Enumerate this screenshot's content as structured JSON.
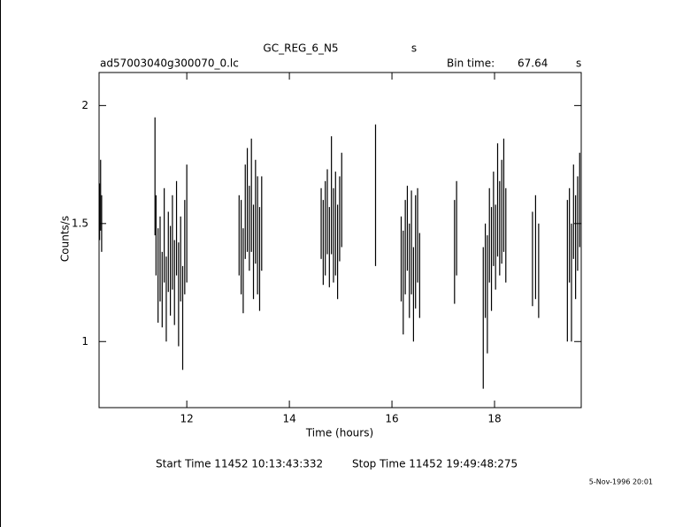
{
  "chart_data": {
    "type": "errorbar",
    "title": "GC_REG_6_N5",
    "title_unit": "s",
    "file_label": "ad57003040g300070_0.lc",
    "bin_label": "Bin time:",
    "bin_time": "67.64",
    "bin_unit": "s",
    "x_label": "Time (hours)",
    "y_label": "Counts/s",
    "start_time": "Start Time 11452 10:13:43:332",
    "stop_time": "Stop Time 11452 19:49:48:275",
    "date_stamp": "5-Nov-1996 20:01",
    "color": "#000000",
    "xlim": [
      10.29,
      19.69
    ],
    "xticks": [
      12,
      14,
      16,
      18
    ],
    "ylim": [
      0.72,
      2.14
    ],
    "yticks": [
      1,
      1.5,
      2
    ],
    "x": [
      10.3,
      10.32,
      10.34,
      11.38,
      11.4,
      11.44,
      11.48,
      11.52,
      11.56,
      11.6,
      11.64,
      11.68,
      11.72,
      11.76,
      11.8,
      11.84,
      11.88,
      11.92,
      11.96,
      12.0,
      13.02,
      13.06,
      13.1,
      13.14,
      13.18,
      13.22,
      13.26,
      13.3,
      13.34,
      13.38,
      13.42,
      13.46,
      14.62,
      14.66,
      14.7,
      14.74,
      14.78,
      14.82,
      14.86,
      14.9,
      14.94,
      14.98,
      15.02,
      15.68,
      16.18,
      16.22,
      16.26,
      16.3,
      16.34,
      16.38,
      16.42,
      16.46,
      16.5,
      16.54,
      17.22,
      17.26,
      17.78,
      17.82,
      17.86,
      17.9,
      17.94,
      17.98,
      18.02,
      18.06,
      18.1,
      18.14,
      18.18,
      18.22,
      18.74,
      18.8,
      18.86,
      19.42,
      19.46,
      19.5,
      19.54,
      19.58,
      19.62,
      19.66
    ],
    "values": [
      1.55,
      1.62,
      1.5,
      1.7,
      1.45,
      1.28,
      1.35,
      1.22,
      1.45,
      1.18,
      1.38,
      1.3,
      1.42,
      1.25,
      1.48,
      1.2,
      1.35,
      1.1,
      1.4,
      1.5,
      1.45,
      1.4,
      1.3,
      1.55,
      1.6,
      1.48,
      1.62,
      1.38,
      1.55,
      1.45,
      1.35,
      1.5,
      1.5,
      1.42,
      1.48,
      1.55,
      1.4,
      1.62,
      1.45,
      1.5,
      1.38,
      1.52,
      1.6,
      1.62,
      1.35,
      1.25,
      1.4,
      1.48,
      1.3,
      1.42,
      1.2,
      1.38,
      1.45,
      1.28,
      1.38,
      1.48,
      1.1,
      1.3,
      1.2,
      1.45,
      1.35,
      1.52,
      1.4,
      1.6,
      1.48,
      1.55,
      1.62,
      1.45,
      1.35,
      1.4,
      1.3,
      1.3,
      1.45,
      1.25,
      1.55,
      1.4,
      1.5,
      1.6
    ],
    "errors": [
      0.12,
      0.15,
      0.12,
      0.25,
      0.17,
      0.2,
      0.18,
      0.16,
      0.2,
      0.18,
      0.17,
      0.19,
      0.2,
      0.18,
      0.2,
      0.22,
      0.18,
      0.22,
      0.2,
      0.25,
      0.17,
      0.2,
      0.18,
      0.2,
      0.22,
      0.18,
      0.24,
      0.2,
      0.22,
      0.25,
      0.22,
      0.2,
      0.15,
      0.18,
      0.2,
      0.18,
      0.17,
      0.25,
      0.2,
      0.22,
      0.2,
      0.18,
      0.2,
      0.3,
      0.18,
      0.22,
      0.2,
      0.18,
      0.2,
      0.22,
      0.2,
      0.24,
      0.2,
      0.18,
      0.22,
      0.2,
      0.3,
      0.2,
      0.25,
      0.2,
      0.22,
      0.2,
      0.18,
      0.24,
      0.2,
      0.22,
      0.24,
      0.2,
      0.2,
      0.22,
      0.2,
      0.3,
      0.2,
      0.25,
      0.2,
      0.22,
      0.2,
      0.2
    ]
  }
}
